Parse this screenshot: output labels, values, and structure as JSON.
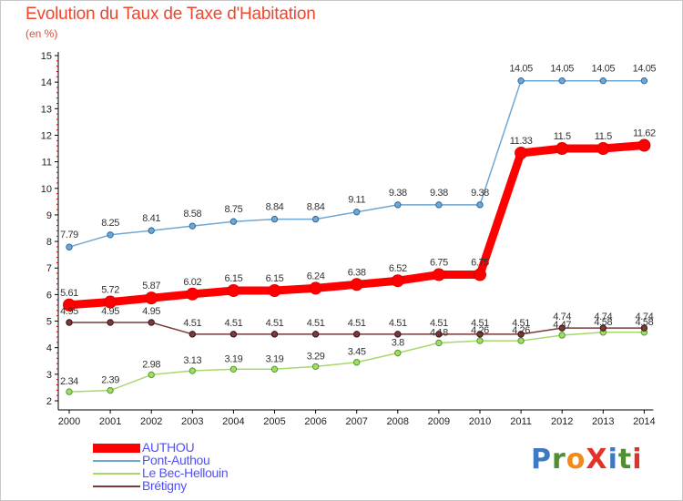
{
  "header": {
    "title": "Evolution du Taux de Taxe d'Habitation",
    "subtitle": "(en %)"
  },
  "logo": {
    "text": "ProXiti",
    "colors": [
      "#3f79c1",
      "#4f8f31",
      "#f08a1a",
      "#e2332a",
      "#3f79c1",
      "#4f8f31",
      "#e2332a"
    ]
  },
  "chart_data": {
    "type": "line",
    "title": "Evolution du Taux de Taxe d'Habitation",
    "subtitle": "(en %)",
    "xlabel": "",
    "ylabel": "",
    "x": [
      "2000",
      "2001",
      "2002",
      "2003",
      "2004",
      "2005",
      "2006",
      "2007",
      "2008",
      "2009",
      "2010",
      "2011",
      "2012",
      "2013",
      "2014"
    ],
    "ylim": [
      2,
      15
    ],
    "yticks": [
      "2",
      "3",
      "4",
      "5",
      "6",
      "7",
      "8",
      "9",
      "10",
      "11",
      "12",
      "13",
      "14",
      "15"
    ],
    "grid": false,
    "legend_position": "bottom-left",
    "series": [
      {
        "name": "AUTHOU",
        "color": "#ff0000",
        "values": [
          5.61,
          5.72,
          5.87,
          6.02,
          6.15,
          6.15,
          6.24,
          6.38,
          6.52,
          6.75,
          6.75,
          11.33,
          11.5,
          11.5,
          11.62
        ],
        "labels": [
          "5.61",
          "5.72",
          "5.87",
          "6.02",
          "6.15",
          "6.15",
          "6.24",
          "6.38",
          "6.52",
          "6.75",
          "6.75",
          "11.33",
          "11.5",
          "11.5",
          "11.62"
        ]
      },
      {
        "name": "Pont-Authou",
        "color": "#6ea7d4",
        "values": [
          7.79,
          8.25,
          8.41,
          8.58,
          8.75,
          8.84,
          8.84,
          9.11,
          9.38,
          9.38,
          9.38,
          14.05,
          14.05,
          14.05,
          14.05
        ],
        "labels": [
          "7.79",
          "8.25",
          "8.41",
          "8.58",
          "8.75",
          "8.84",
          "8.84",
          "9.11",
          "9.38",
          "9.38",
          "9.38",
          "14.05",
          "14.05",
          "14.05",
          "14.05"
        ]
      },
      {
        "name": "Le Bec-Hellouin",
        "color": "#a6d86a",
        "values": [
          2.34,
          2.39,
          2.98,
          3.13,
          3.19,
          3.19,
          3.29,
          3.45,
          3.8,
          4.18,
          4.26,
          4.26,
          4.47,
          4.58,
          4.58
        ],
        "labels": [
          "2.34",
          "2.39",
          "2.98",
          "3.13",
          "3.19",
          "3.19",
          "3.29",
          "3.45",
          "3.8",
          "4.18",
          "4.26",
          "4.26",
          "4.47",
          "4.58",
          "4.58"
        ]
      },
      {
        "name": "Brétigny",
        "color": "#7a3a3a",
        "values": [
          4.95,
          4.95,
          4.95,
          4.51,
          4.51,
          4.51,
          4.51,
          4.51,
          4.51,
          4.51,
          4.51,
          4.51,
          4.74,
          4.74,
          4.74
        ],
        "labels": [
          "4.95",
          "4.95",
          "4.95",
          "4.51",
          "4.51",
          "4.51",
          "4.51",
          "4.51",
          "4.51",
          "4.51",
          "4.51",
          "4.51",
          "4.74",
          "4.74",
          "4.74"
        ]
      }
    ]
  }
}
